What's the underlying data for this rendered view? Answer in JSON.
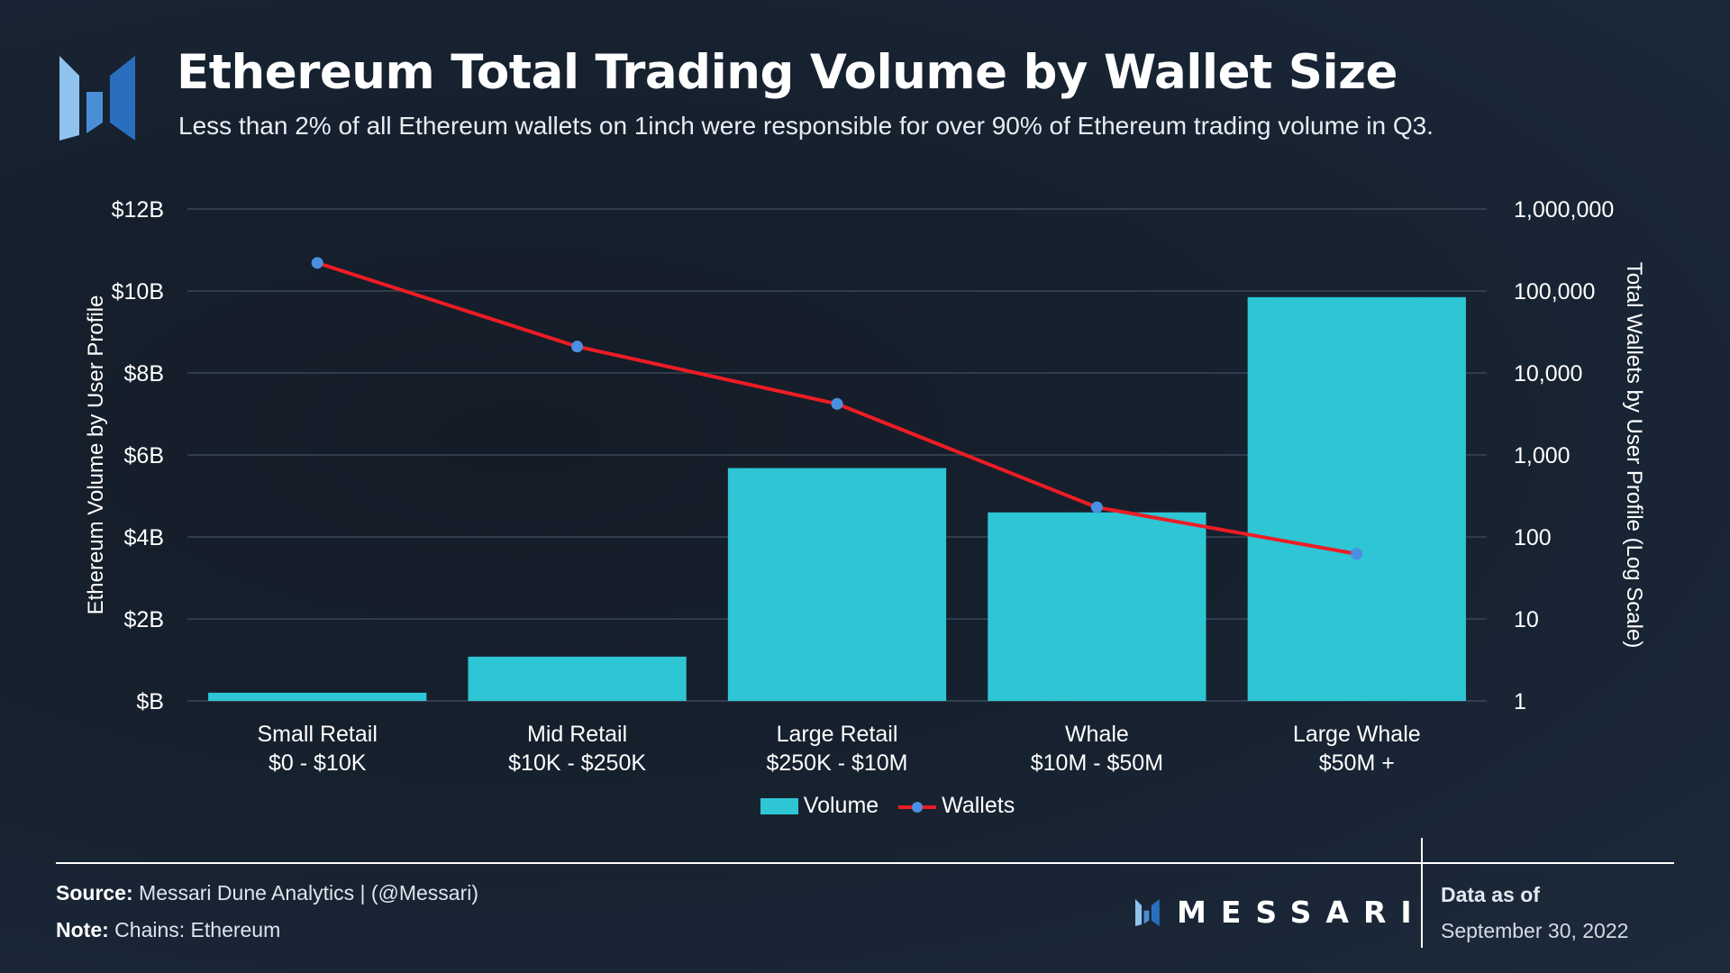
{
  "header": {
    "title": "Ethereum Total Trading Volume by Wallet Size",
    "subtitle": "Less than 2% of all Ethereum wallets on 1inch were responsible for over 90% of Ethereum trading volume in Q3."
  },
  "colors": {
    "volume_bar": "#2ec5d4",
    "wallets_line": "#ee1c25",
    "wallets_marker": "#4a90e2",
    "gridline": "#3a4656",
    "logo_light": "#7fb9e8",
    "logo_mid": "#4a8fd6",
    "logo_dark": "#2a6fbf"
  },
  "chart_data": {
    "type": "bar",
    "categories": [
      [
        "Small Retail",
        "$0 - $10K"
      ],
      [
        "Mid Retail",
        "$10K - $250K"
      ],
      [
        "Large Retail",
        "$250K - $10M"
      ],
      [
        "Whale",
        "$10M - $50M"
      ],
      [
        "Large Whale",
        "$50M +"
      ]
    ],
    "series": [
      {
        "name": "Volume",
        "type": "bar",
        "axis": "left",
        "values": [
          0.2,
          1.08,
          5.68,
          4.6,
          9.85
        ]
      },
      {
        "name": "Wallets",
        "type": "line",
        "axis": "right",
        "values": [
          220000,
          21000,
          4200,
          230,
          62
        ]
      }
    ],
    "ylabel": "Ethereum Volume by User Profile",
    "y2label": "Total Wallets by User Profile (Log Scale)",
    "ylim": [
      0,
      12
    ],
    "y_ticks": [
      "$B",
      "$2B",
      "$4B",
      "$6B",
      "$8B",
      "$10B",
      "$12B"
    ],
    "y2_scale": "log",
    "y2lim": [
      1,
      1000000
    ],
    "y2_ticks": [
      "1",
      "10",
      "100",
      "1,000",
      "10,000",
      "100,000",
      "1,000,000"
    ],
    "grid": true,
    "legend_position": "bottom"
  },
  "footer": {
    "source_label": "Source:",
    "source_text": " Messari Dune Analytics | (@Messari)",
    "note_label": "Note:",
    "note_text": " Chains: Ethereum",
    "brand": "MESSARI",
    "asof_label": "Data as of",
    "asof_date": "September 30, 2022"
  }
}
